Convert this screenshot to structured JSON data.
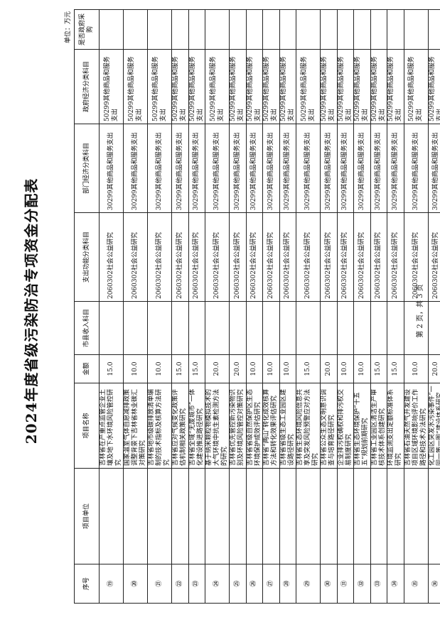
{
  "title": "2024年度省级污染防治专项资金分配表",
  "unit": "单位：万元",
  "footer": "第 2 页，共 3 页",
  "columns": [
    "序号",
    "项目单位",
    "项目名称",
    "金额",
    "市县收入科目",
    "支出功能分类科目",
    "部门经济分类科目",
    "政府经济分类科目",
    "是否政府采购"
  ],
  "rows": [
    {
      "no": "⑲",
      "unit": "",
      "name": "吉林省在产重点监管企业土壤及地下水环境风险管控研究",
      "amount": "15.0",
      "income": "",
      "func": "2060302社会公益研究",
      "dept": "30299其他商品和服务支出",
      "gov": "50299其他商品和服务支出",
      "purchase": ""
    },
    {
      "no": "⑳",
      "unit": "",
      "name": "国家温室气体自愿减排政策调整背景下吉林省林业碳汇对策研究",
      "amount": "10.0",
      "income": "",
      "func": "2060302社会公益研究",
      "dept": "30299其他商品和服务支出",
      "gov": "50299其他商品和服务支出",
      "purchase": ""
    },
    {
      "no": "㉑",
      "unit": "",
      "name": "吉林省地市级碳排放清单编制的技术指标及核算方法研究",
      "amount": "10.0",
      "income": "",
      "func": "2060302社会公益研究",
      "dept": "30299其他商品和服务支出",
      "gov": "50299其他商品和服务支出",
      "purchase": ""
    },
    {
      "no": "㉒",
      "unit": "",
      "name": "吉林省应对气候变化政策评估机制相关政策研究",
      "amount": "15.0",
      "income": "",
      "func": "2060302社会公益研究",
      "dept": "30299其他商品和服务支出",
      "gov": "50299其他商品和服务支出",
      "purchase": ""
    },
    {
      "no": "㉓",
      "unit": "",
      "name": "吉林省全域“无废城市”一体化建设推进路径研究",
      "amount": "15.0",
      "income": "",
      "func": "2060302社会公益研究",
      "dept": "30299其他商品和服务支出",
      "gov": "50299其他商品和服务支出",
      "purchase": ""
    },
    {
      "no": "㉔",
      "unit": "",
      "name": "基于纳米颗粒物模拟技术的大气环境中抗生素检测方法的研究",
      "amount": "20.0",
      "income": "",
      "func": "2060302社会公益研究",
      "dept": "30299其他商品和服务支出",
      "gov": "50299其他商品和服务支出",
      "purchase": ""
    },
    {
      "no": "㉕",
      "unit": "",
      "name": "吉林省优先管控新污染物识别及环境风险管控对策研究",
      "amount": "20.0",
      "income": "",
      "func": "2060302社会公益研究",
      "dept": "30299其他商品和服务支出",
      "gov": "50299其他商品和服务支出",
      "purchase": ""
    },
    {
      "no": "㉖",
      "unit": "",
      "name": "吉林省省级自然保护区生态环境保护成效评估研究",
      "amount": "10.0",
      "income": "",
      "func": "2060302社会公益研究",
      "dept": "30299其他商品和服务支出",
      "gov": "50299其他商品和服务支出",
      "purchase": ""
    },
    {
      "no": "㉗",
      "unit": "",
      "name": "吉林省“两山”转化成效核算方法和转化效果评估研究",
      "amount": "10.0",
      "income": "",
      "func": "2060302社会公益研究",
      "dept": "30299其他商品和服务支出",
      "gov": "50299其他商品和服务支出",
      "purchase": ""
    },
    {
      "no": "㉘",
      "unit": "",
      "name": "吉林省省级生态工业园区建设路径研究",
      "amount": "10.0",
      "income": "",
      "func": "2060302社会公益研究",
      "dept": "30299其他商品和服务支出",
      "gov": "50299其他商品和服务支出",
      "purchase": ""
    },
    {
      "no": "㉙",
      "unit": "",
      "name": "吉林省生态环境风险信息共享及突发风险预警应对方法研究",
      "amount": "15.0",
      "income": "",
      "func": "2060302社会公益研究",
      "dept": "30299其他商品和服务支出",
      "gov": "50299其他商品和服务支出",
      "purchase": ""
    },
    {
      "no": "㉚",
      "unit": "",
      "name": "吉林省公众生态文明意识调查与培育路径研究",
      "amount": "20.0",
      "income": "",
      "func": "2060302社会公益研究",
      "dept": "30299其他商品和服务支出",
      "gov": "50299其他商品和服务支出",
      "purchase": ""
    },
    {
      "no": "㉛",
      "unit": "",
      "name": "企业排污权确权和排污权交易制度研究",
      "amount": "10.0",
      "income": "",
      "func": "2060302社会公益研究",
      "dept": "30299其他商品和服务支出",
      "gov": "50299其他商品和服务支出",
      "purchase": ""
    },
    {
      "no": "㉜",
      "unit": "",
      "name": "吉林省生态环境保护“十五五”规划前期研究",
      "amount": "10.0",
      "income": "",
      "func": "2060302社会公益研究",
      "dept": "30299其他商品和服务支出",
      "gov": "50299其他商品和服务支出",
      "purchase": ""
    },
    {
      "no": "㉝",
      "unit": "",
      "name": "吉林省工业园区清洁生产审核技术体系创建研究",
      "amount": "15.0",
      "income": "",
      "func": "2060302社会公益研究",
      "dept": "30299其他商品和服务支出",
      "gov": "50299其他商品和服务支出",
      "purchase": ""
    },
    {
      "no": "㉞",
      "unit": "",
      "name": "环境监测支出定额标准体系研究",
      "amount": "15.0",
      "income": "",
      "func": "2060302社会公益研究",
      "dept": "30299其他商品和服务支出",
      "gov": "50299其他商品和服务支出",
      "purchase": ""
    },
    {
      "no": "㉟",
      "unit": "",
      "name": "吉林省石油天然气开发建设项目区域环境影响评价工作路径和技术方法研究",
      "amount": "10.0",
      "income": "",
      "func": "2060302社会公益研究",
      "dept": "30299其他商品和服务支出",
      "gov": "50299其他商品和服务支出",
      "purchase": ""
    },
    {
      "no": "㊱",
      "unit": "",
      "name": "化工园区突发水污染事件“一园一策一图”建设体系研究",
      "amount": "20.0",
      "income": "",
      "func": "2060302社会公益研究",
      "dept": "30299其他商品和服务支出",
      "gov": "50299其他商品和服务支出",
      "purchase": ""
    }
  ]
}
